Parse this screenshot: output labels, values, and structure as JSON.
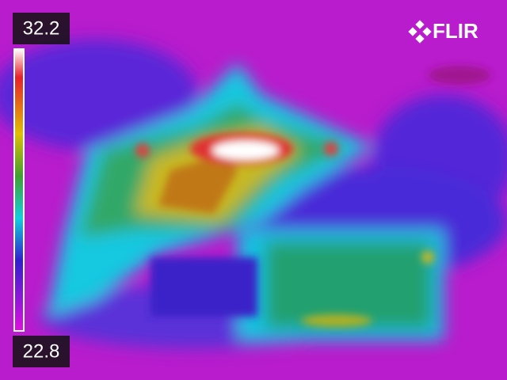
{
  "scale": {
    "max": 32.2,
    "min": 22.8
  },
  "brand": "FLIR"
}
